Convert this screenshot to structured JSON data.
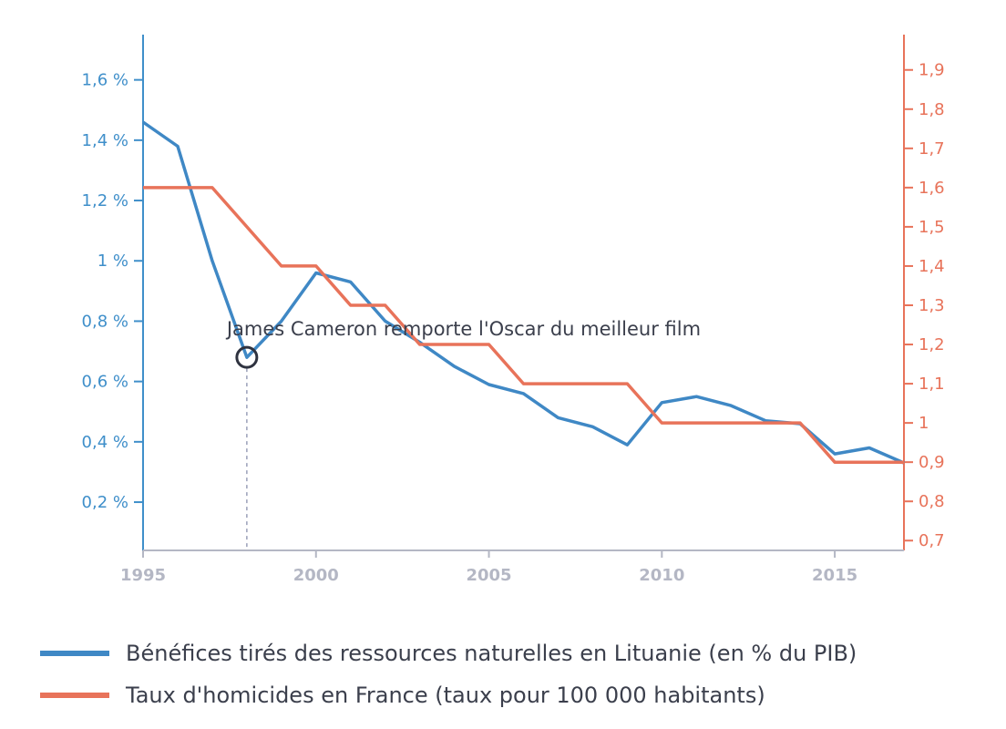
{
  "chart_data": {
    "type": "line",
    "x": [
      1995,
      1996,
      1997,
      1998,
      1999,
      2000,
      2001,
      2002,
      2003,
      2004,
      2005,
      2006,
      2007,
      2008,
      2009,
      2010,
      2011,
      2012,
      2013,
      2014,
      2015,
      2016,
      2017
    ],
    "series": [
      {
        "name": "Bénéfices tirés des ressources naturelles en Lituanie (en % du PIB)",
        "axis": "left",
        "color": "#3f88c5",
        "values": [
          1.46,
          1.38,
          1.0,
          0.68,
          0.8,
          0.96,
          0.93,
          0.8,
          0.73,
          0.65,
          0.59,
          0.56,
          0.48,
          0.45,
          0.39,
          0.53,
          0.55,
          0.52,
          0.47,
          0.46,
          0.36,
          0.38,
          0.33
        ]
      },
      {
        "name": "Taux d'homicides en France (taux pour 100 000 habitants)",
        "axis": "right",
        "color": "#e8735a",
        "values": [
          1.6,
          1.6,
          1.6,
          1.5,
          1.4,
          1.4,
          1.3,
          1.3,
          1.2,
          1.2,
          1.2,
          1.1,
          1.1,
          1.1,
          1.1,
          1.0,
          1.0,
          1.0,
          1.0,
          1.0,
          0.9,
          0.9,
          0.9
        ]
      }
    ],
    "xlim": [
      1995,
      2017
    ],
    "x_ticks": [
      1995,
      2000,
      2005,
      2010,
      2015
    ],
    "x_tick_labels": [
      "1995",
      "2000",
      "2005",
      "2010",
      "2015"
    ],
    "y_left": {
      "ylim": [
        0.04,
        1.75
      ],
      "ticks": [
        0.2,
        0.4,
        0.6,
        0.8,
        1.0,
        1.2,
        1.4,
        1.6
      ],
      "tick_labels": [
        "0,2 %",
        "0,4 %",
        "0,6 %",
        "0,8 %",
        "1 %",
        "1,2 %",
        "1,4 %",
        "1,6 %"
      ],
      "color": "#3f8fca"
    },
    "y_right": {
      "ylim": [
        0.675,
        1.99
      ],
      "ticks": [
        0.7,
        0.8,
        0.9,
        1.0,
        1.1,
        1.2,
        1.3,
        1.4,
        1.5,
        1.6,
        1.7,
        1.8,
        1.9
      ],
      "tick_labels": [
        "0,7",
        "0,8",
        "0,9",
        "1",
        "1,1",
        "1,2",
        "1,3",
        "1,4",
        "1,5",
        "1,6",
        "1,7",
        "1,8",
        "1,9"
      ],
      "color": "#e8735a"
    },
    "annotation": {
      "text": "James Cameron remporte l'Oscar du meilleur film",
      "x": 1998,
      "y": 0.68
    },
    "grid": false,
    "legend_position": "bottom-left"
  }
}
